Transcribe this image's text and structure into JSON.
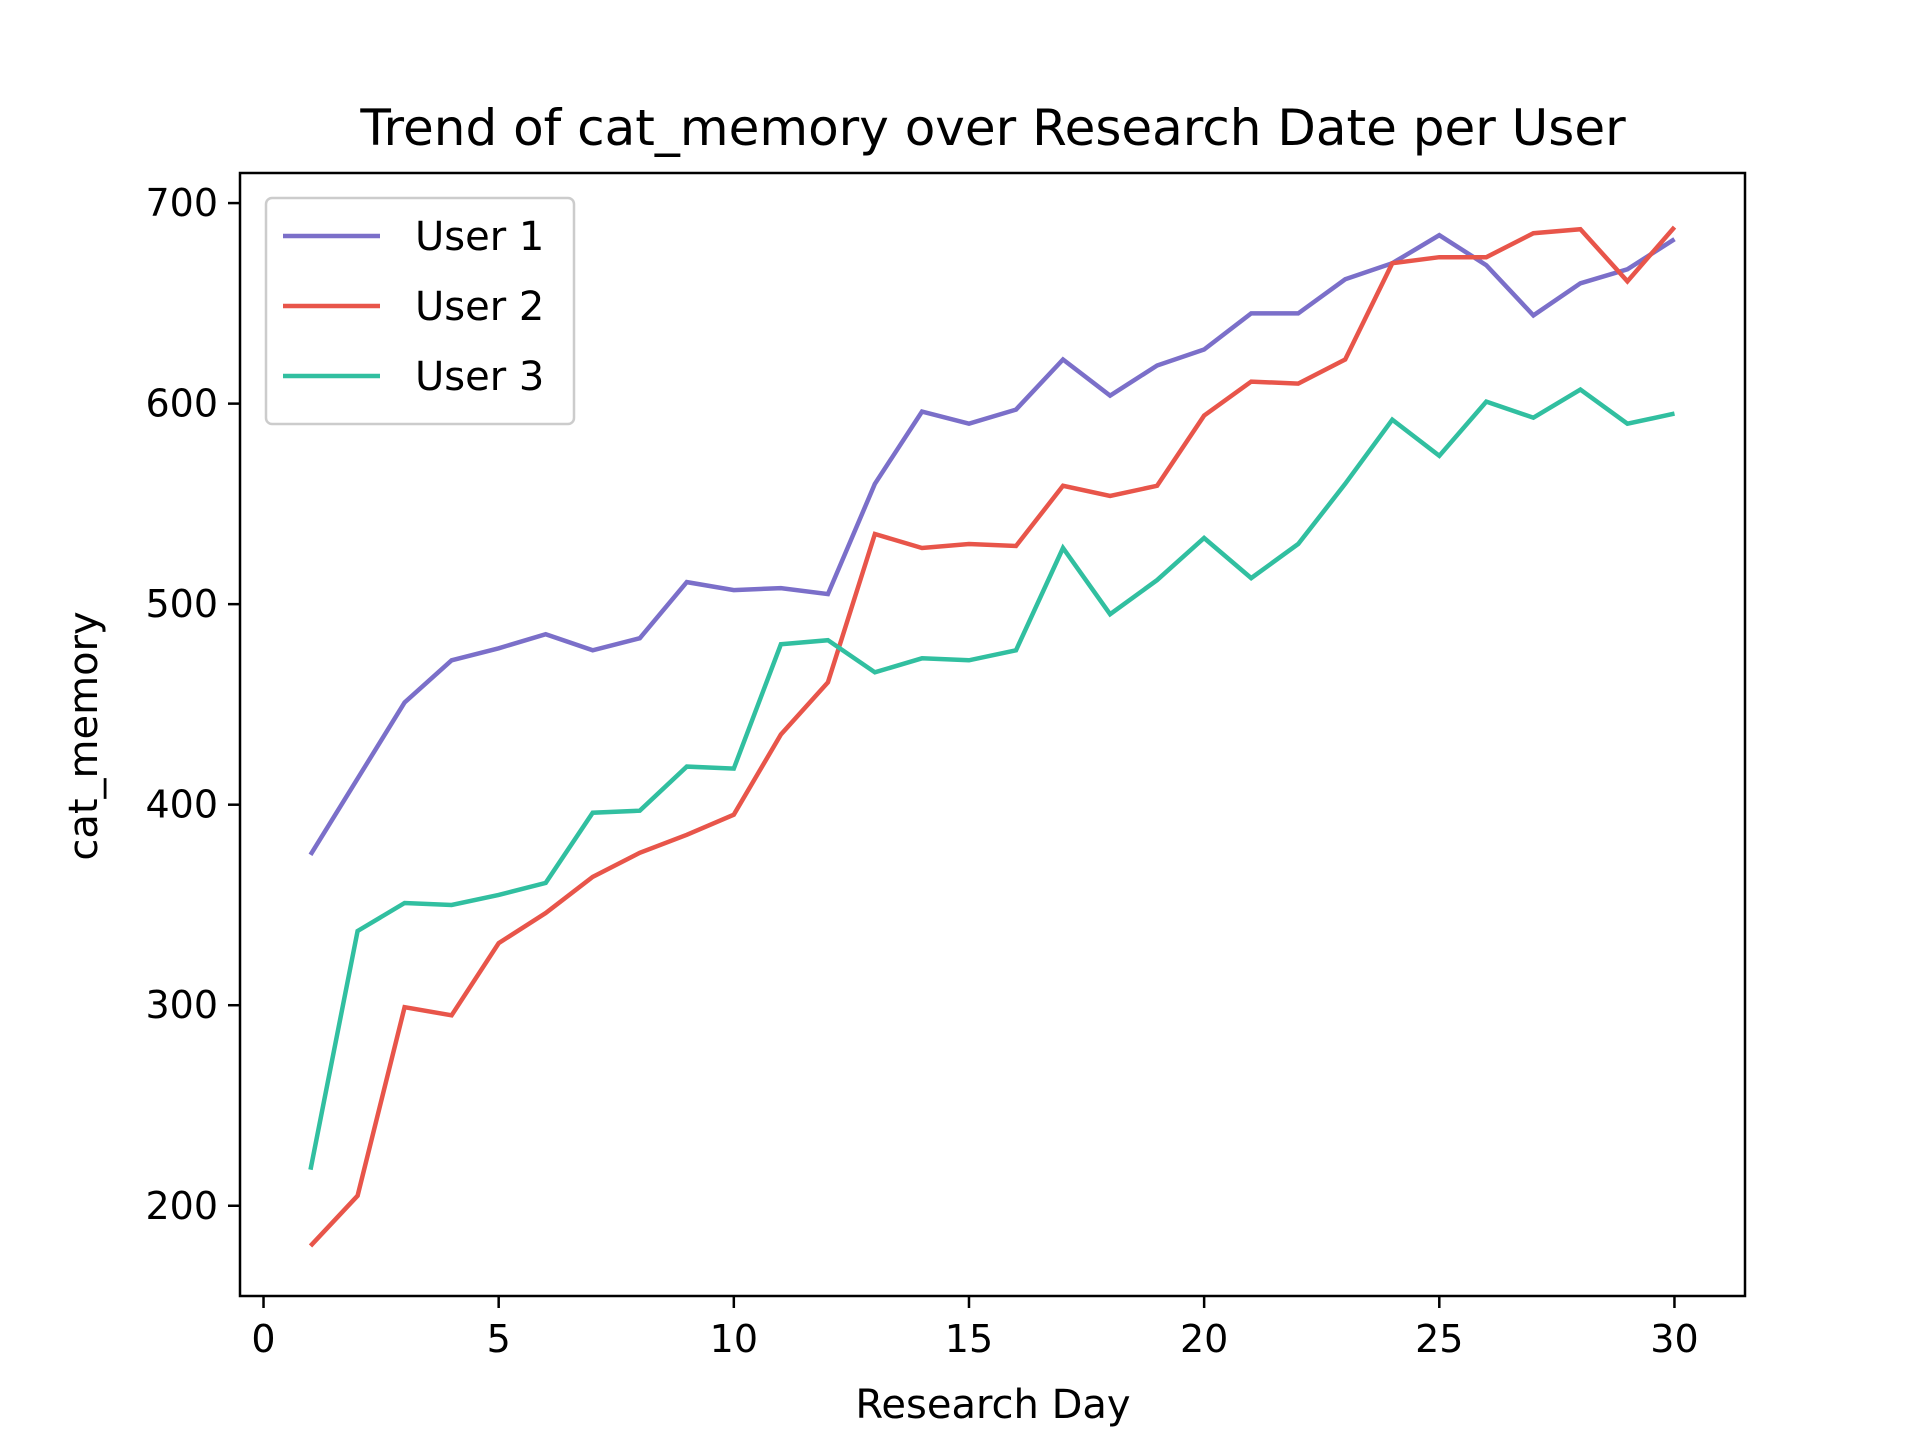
{
  "chart_data": {
    "type": "line",
    "title": "Trend of cat_memory over Research Date per User",
    "xlabel": "Research Day",
    "ylabel": "cat_memory",
    "xlim": [
      -0.5,
      31.5
    ],
    "ylim": [
      155,
      715
    ],
    "xticks": [
      0,
      5,
      10,
      15,
      20,
      25,
      30
    ],
    "yticks": [
      200,
      300,
      400,
      500,
      600,
      700
    ],
    "grid": false,
    "legend_position": "upper left",
    "x": [
      1,
      2,
      3,
      4,
      5,
      6,
      7,
      8,
      9,
      10,
      11,
      12,
      13,
      14,
      15,
      16,
      17,
      18,
      19,
      20,
      21,
      22,
      23,
      24,
      25,
      26,
      27,
      28,
      29,
      30
    ],
    "series": [
      {
        "name": "User 1",
        "color": "#7b6fc9",
        "values": [
          375,
          413,
          451,
          472,
          478,
          485,
          477,
          483,
          511,
          507,
          508,
          505,
          560,
          596,
          590,
          597,
          622,
          604,
          619,
          627,
          645,
          645,
          662,
          670,
          684,
          669,
          644,
          660,
          667,
          682
        ]
      },
      {
        "name": "User 2",
        "color": "#e8554a",
        "values": [
          180,
          205,
          299,
          295,
          331,
          346,
          364,
          376,
          385,
          395,
          435,
          461,
          535,
          528,
          530,
          529,
          559,
          554,
          559,
          594,
          611,
          610,
          622,
          670,
          673,
          673,
          685,
          687,
          661,
          688
        ]
      },
      {
        "name": "User 3",
        "color": "#31bfa0",
        "values": [
          218,
          337,
          351,
          350,
          355,
          361,
          396,
          397,
          419,
          418,
          480,
          482,
          466,
          473,
          472,
          477,
          528,
          495,
          512,
          533,
          513,
          530,
          560,
          592,
          574,
          601,
          593,
          607,
          590,
          595
        ]
      }
    ]
  }
}
